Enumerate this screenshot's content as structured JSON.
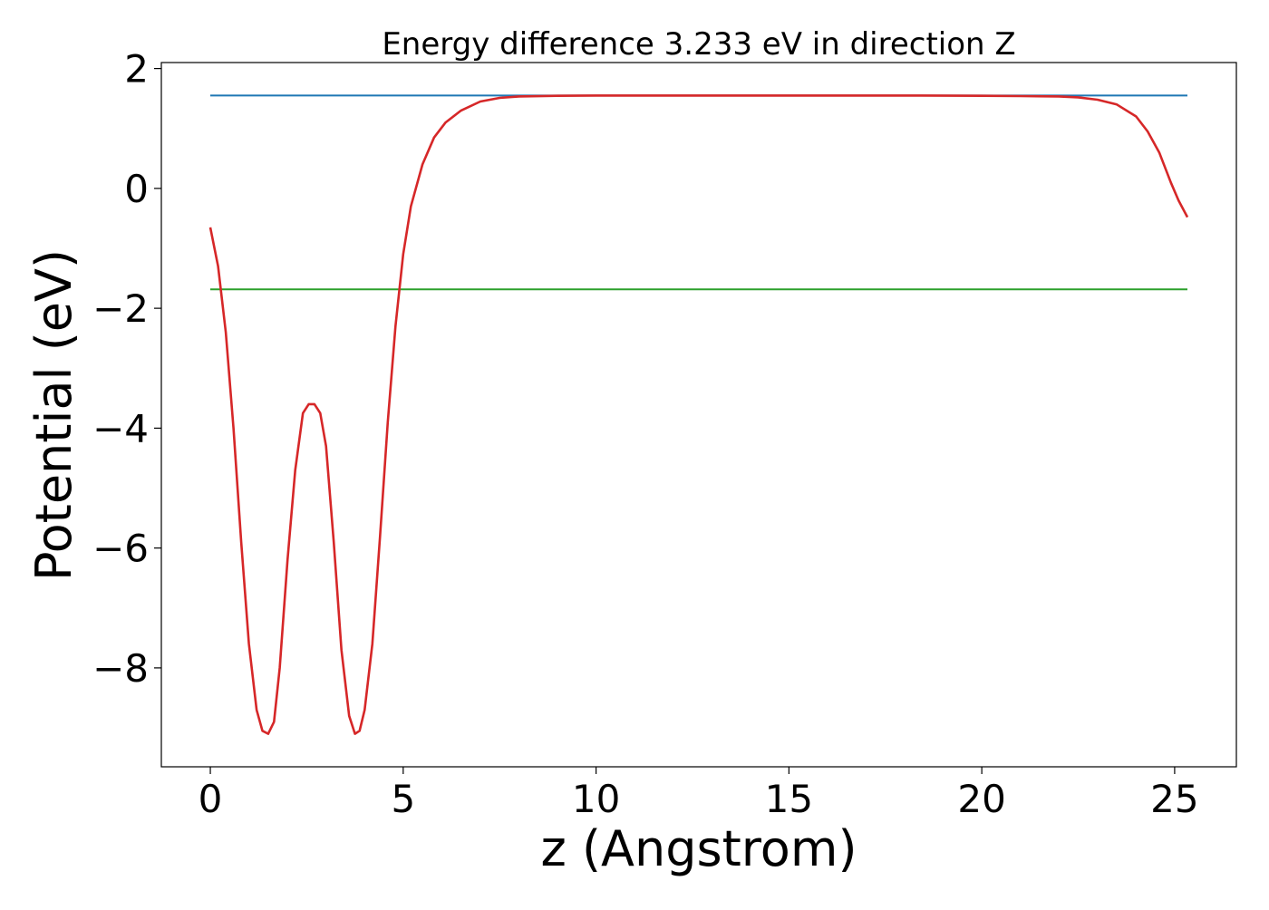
{
  "chart_data": {
    "type": "line",
    "title": "Energy difference 3.233 eV in direction Z",
    "xlabel": "z (Angstrom)",
    "ylabel": "Potential (eV)",
    "xlim": [
      -1.27,
      26.6
    ],
    "ylim": [
      -9.65,
      2.1
    ],
    "x_ticks": [
      0,
      5,
      10,
      15,
      20,
      25
    ],
    "y_ticks": [
      2,
      0,
      -2,
      -4,
      -6,
      -8
    ],
    "x_tick_labels": [
      "0",
      "5",
      "10",
      "15",
      "20",
      "25"
    ],
    "y_tick_labels": [
      "2",
      "0",
      "−2",
      "−4",
      "−6",
      "−8"
    ],
    "grid": false,
    "legend": "none",
    "series": [
      {
        "color": "#1f77b4",
        "x": [
          0,
          25.33
        ],
        "y": [
          1.55,
          1.55
        ]
      },
      {
        "color": "#2ca02c",
        "x": [
          0,
          25.33
        ],
        "y": [
          -1.683,
          -1.683
        ]
      },
      {
        "color": "#d62728",
        "x": [
          0,
          0.2,
          0.4,
          0.6,
          0.8,
          1.0,
          1.2,
          1.35,
          1.5,
          1.65,
          1.8,
          2.0,
          2.2,
          2.4,
          2.55,
          2.7,
          2.85,
          3.0,
          3.2,
          3.4,
          3.6,
          3.75,
          3.87,
          4.0,
          4.2,
          4.4,
          4.6,
          4.8,
          5.0,
          5.2,
          5.5,
          5.8,
          6.1,
          6.5,
          7.0,
          7.5,
          8.0,
          9.0,
          10.0,
          12.0,
          15.0,
          18.0,
          20.0,
          21.0,
          22.0,
          22.5,
          23.0,
          23.5,
          24.0,
          24.3,
          24.6,
          24.9,
          25.1,
          25.33
        ],
        "y": [
          -0.65,
          -1.3,
          -2.4,
          -4.0,
          -5.9,
          -7.6,
          -8.7,
          -9.05,
          -9.1,
          -8.9,
          -8.0,
          -6.2,
          -4.7,
          -3.75,
          -3.6,
          -3.6,
          -3.75,
          -4.3,
          -5.9,
          -7.7,
          -8.8,
          -9.1,
          -9.05,
          -8.7,
          -7.6,
          -5.8,
          -3.9,
          -2.3,
          -1.1,
          -0.3,
          0.4,
          0.85,
          1.1,
          1.3,
          1.45,
          1.51,
          1.535,
          1.545,
          1.55,
          1.55,
          1.55,
          1.55,
          1.545,
          1.54,
          1.535,
          1.52,
          1.48,
          1.4,
          1.2,
          0.95,
          0.6,
          0.1,
          -0.2,
          -0.48
        ]
      }
    ]
  }
}
